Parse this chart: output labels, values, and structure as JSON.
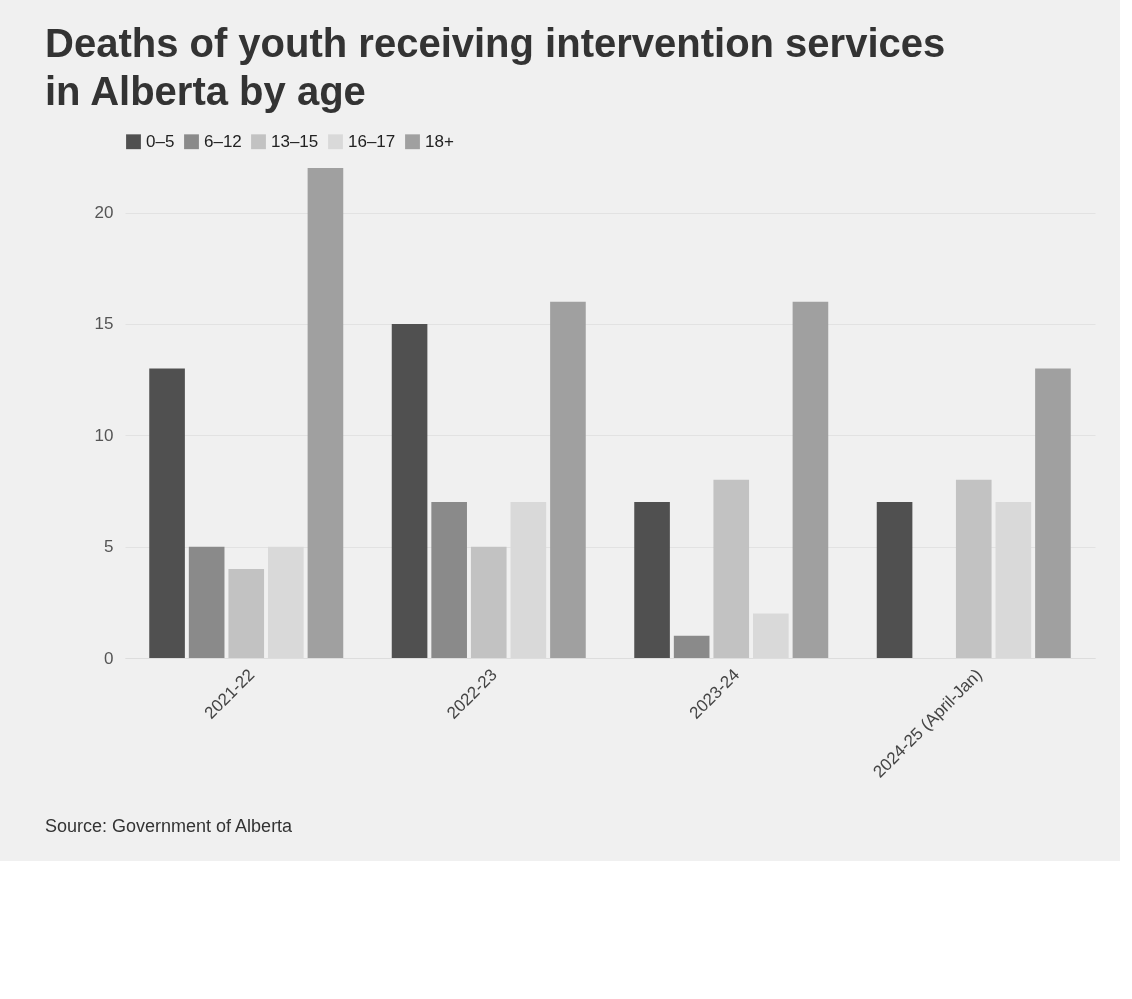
{
  "chart_data": {
    "type": "bar",
    "title": "Deaths of youth receiving intervention services in Alberta by age",
    "categories": [
      "2021-22",
      "2022-23",
      "2023-24",
      "2024-25 (April-Jan)"
    ],
    "series": [
      {
        "name": "0–5",
        "color": "#505050",
        "values": [
          13,
          15,
          7,
          7
        ]
      },
      {
        "name": "6–12",
        "color": "#8a8a8a",
        "values": [
          5,
          7,
          1,
          null
        ]
      },
      {
        "name": "13–15",
        "color": "#c2c2c2",
        "values": [
          4,
          5,
          8,
          8
        ]
      },
      {
        "name": "16–17",
        "color": "#d9d9d9",
        "values": [
          5,
          7,
          2,
          7
        ]
      },
      {
        "name": "18+",
        "color": "#a0a0a0",
        "values": [
          22,
          16,
          16,
          13
        ]
      }
    ],
    "ylim": [
      0,
      22
    ],
    "yticks": [
      0,
      5,
      10,
      15,
      20
    ],
    "grid": "y",
    "legend": "top left",
    "annotations": [
      "Source: Government of Alberta"
    ]
  }
}
